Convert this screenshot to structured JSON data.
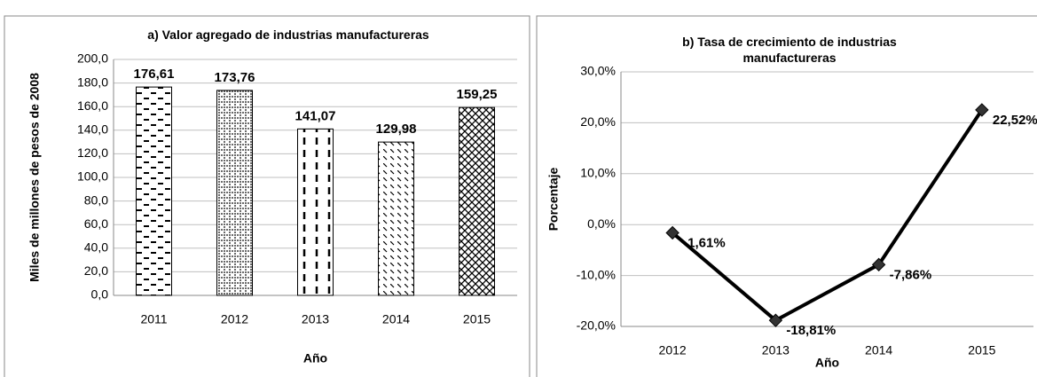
{
  "chart_data": [
    {
      "type": "bar",
      "title": "a) Valor agregado de industrias manufactureras",
      "y_label": "Miles de millones de pesos de 2008",
      "x_label": "Año",
      "categories": [
        "2011",
        "2012",
        "2013",
        "2014",
        "2015"
      ],
      "values": [
        176.61,
        173.76,
        141.07,
        129.98,
        159.25
      ],
      "value_labels": [
        "176,61",
        "173,76",
        "141,07",
        "129,98",
        "159,25"
      ],
      "color": "#000000",
      "ylim": [
        0,
        200
      ],
      "yticks": [
        {
          "value": 0,
          "label": "0,0"
        },
        {
          "value": 20,
          "label": "20,0"
        },
        {
          "value": 40,
          "label": "40,0"
        },
        {
          "value": 60,
          "label": "60,0"
        },
        {
          "value": 80,
          "label": "80,0"
        },
        {
          "value": 100,
          "label": "100,0"
        },
        {
          "value": 120,
          "label": "120,0"
        },
        {
          "value": 140,
          "label": "140,0"
        },
        {
          "value": 160,
          "label": "160,0"
        },
        {
          "value": 180,
          "label": "180,0"
        },
        {
          "value": 200,
          "label": "200,0"
        }
      ],
      "grid": true
    },
    {
      "type": "line",
      "title": "b) Tasa de crecimiento de industrias manufactureras",
      "y_label": "Porcentaje",
      "x_label": "Año",
      "categories": [
        "2012",
        "2013",
        "2014",
        "2015"
      ],
      "values": [
        -1.61,
        -18.81,
        -7.86,
        22.52
      ],
      "value_labels": [
        "-1,61%",
        "-18,81%",
        "-7,86%",
        "22,52%"
      ],
      "color": "#000000",
      "marker_color": "#333333",
      "ylim": [
        -20,
        30
      ],
      "yticks": [
        {
          "value": -20,
          "label": "-20,0%"
        },
        {
          "value": -10,
          "label": "-10,0%"
        },
        {
          "value": 0,
          "label": "0,0%"
        },
        {
          "value": 10,
          "label": "10,0%"
        },
        {
          "value": 20,
          "label": "20,0%"
        },
        {
          "value": 30,
          "label": "30,0%"
        }
      ],
      "grid": true
    }
  ]
}
